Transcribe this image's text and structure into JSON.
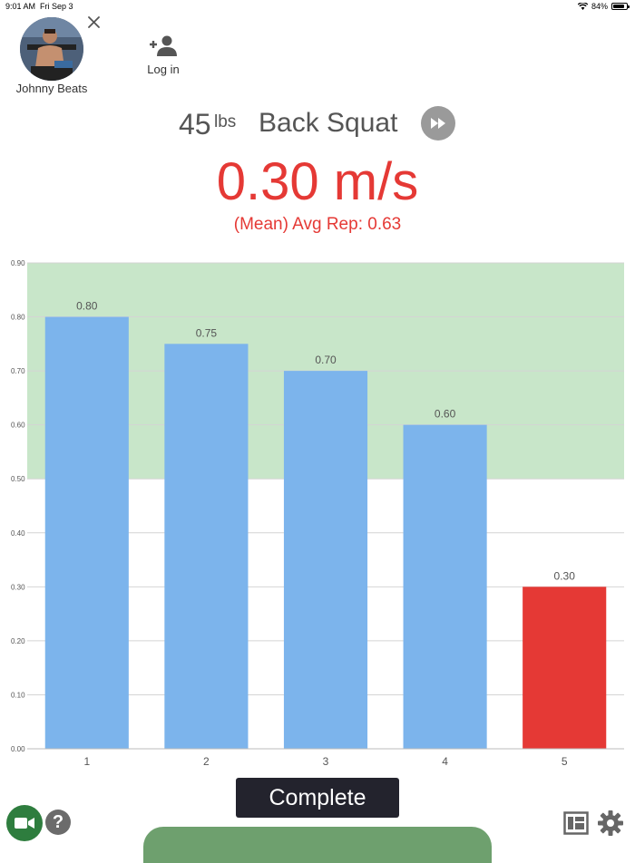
{
  "status_bar": {
    "time": "9:01 AM",
    "date": "Fri Sep 3",
    "battery": "84%",
    "battery_level": 0.84
  },
  "profile": {
    "name": "Johnny Beats"
  },
  "login": {
    "label": "Log in"
  },
  "exercise": {
    "weight": "45",
    "unit": "lbs",
    "name": "Back Squat"
  },
  "velocity": {
    "current": "0.30 m/s",
    "avg_rep_label": "(Mean) Avg Rep: 0.63"
  },
  "actions": {
    "complete_label": "Complete"
  },
  "colors": {
    "bar": "#7cb4ec",
    "bar_alert": "#e53935",
    "target_zone": "#c8e6c9",
    "accent_red": "#e53935"
  },
  "icons": [
    "close-icon",
    "add-person-icon",
    "fast-forward-icon",
    "video-camera-icon",
    "help-icon",
    "layout-icon",
    "gear-icon",
    "wifi-icon",
    "battery-icon"
  ],
  "chart_data": {
    "type": "bar",
    "categories": [
      "1",
      "2",
      "3",
      "4",
      "5"
    ],
    "values": [
      0.8,
      0.75,
      0.7,
      0.6,
      0.3
    ],
    "value_labels": [
      "0.80",
      "0.75",
      "0.70",
      "0.60",
      "0.30"
    ],
    "bar_colors": [
      "#7cb4ec",
      "#7cb4ec",
      "#7cb4ec",
      "#7cb4ec",
      "#e53935"
    ],
    "ylim": [
      0,
      0.9
    ],
    "yticks": [
      0,
      0.1,
      0.2,
      0.3,
      0.4,
      0.5,
      0.6,
      0.7,
      0.8,
      0.9
    ],
    "ytick_labels": [
      "0.00",
      "0.10",
      "0.20",
      "0.30",
      "0.40",
      "0.50",
      "0.60",
      "0.70",
      "0.80",
      "0.90"
    ],
    "target_zone": [
      0.5,
      0.9
    ],
    "grid": true,
    "title": "",
    "xlabel": "",
    "ylabel": ""
  }
}
